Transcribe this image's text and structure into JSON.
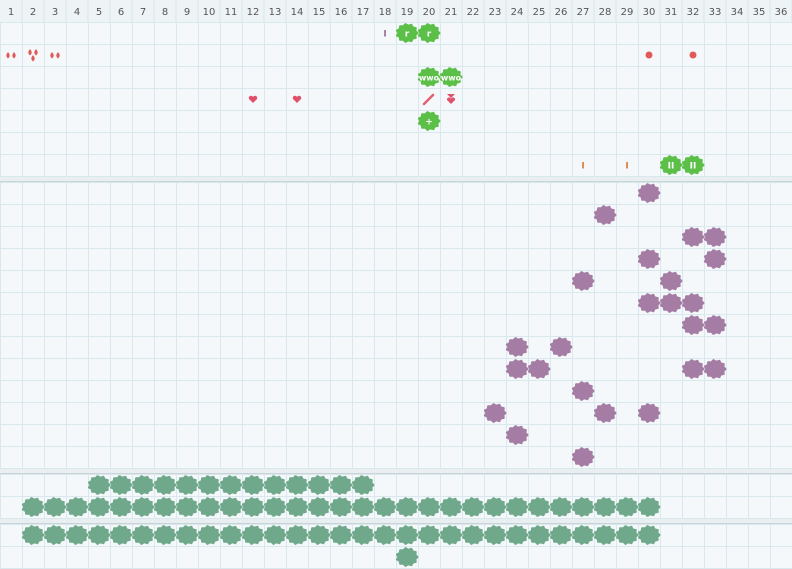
{
  "columns": [
    1,
    2,
    3,
    4,
    5,
    6,
    7,
    8,
    9,
    10,
    11,
    12,
    13,
    14,
    15,
    16,
    17,
    18,
    19,
    20,
    21,
    22,
    23,
    24,
    25,
    26,
    27,
    28,
    29,
    30,
    31,
    32,
    33,
    34,
    35,
    36
  ],
  "sections": [
    {
      "cells": [
        {
          "row": 1,
          "col": 18,
          "kind": "mark-purple",
          "label": "I"
        },
        {
          "row": 1,
          "col": 19,
          "kind": "green",
          "label": "r"
        },
        {
          "row": 1,
          "col": 20,
          "kind": "green",
          "label": "r"
        },
        {
          "row": 2,
          "col": 1,
          "kind": "drops"
        },
        {
          "row": 2,
          "col": 2,
          "kind": "drops3"
        },
        {
          "row": 2,
          "col": 3,
          "kind": "drops"
        },
        {
          "row": 2,
          "col": 30,
          "kind": "dot"
        },
        {
          "row": 2,
          "col": 32,
          "kind": "dot"
        },
        {
          "row": 3,
          "col": 20,
          "kind": "green",
          "label": "wwo"
        },
        {
          "row": 3,
          "col": 21,
          "kind": "green",
          "label": "wwo"
        },
        {
          "row": 4,
          "col": 12,
          "kind": "heart"
        },
        {
          "row": 4,
          "col": 14,
          "kind": "heart"
        },
        {
          "row": 4,
          "col": 20,
          "kind": "pencil"
        },
        {
          "row": 4,
          "col": 21,
          "kind": "ribbon"
        },
        {
          "row": 5,
          "col": 20,
          "kind": "green",
          "label": "+"
        },
        {
          "row": 7,
          "col": 27,
          "kind": "mark-orange",
          "label": "I"
        },
        {
          "row": 7,
          "col": 29,
          "kind": "mark-orange",
          "label": "I"
        },
        {
          "row": 7,
          "col": 31,
          "kind": "green",
          "label": "II"
        },
        {
          "row": 7,
          "col": 32,
          "kind": "green",
          "label": "II"
        }
      ]
    },
    {
      "cells": [
        {
          "row": 1,
          "col": 30,
          "kind": "purple"
        },
        {
          "row": 2,
          "col": 28,
          "kind": "purple"
        },
        {
          "row": 3,
          "col": 32,
          "kind": "purple"
        },
        {
          "row": 3,
          "col": 33,
          "kind": "purple"
        },
        {
          "row": 4,
          "col": 30,
          "kind": "purple"
        },
        {
          "row": 4,
          "col": 33,
          "kind": "purple"
        },
        {
          "row": 5,
          "col": 27,
          "kind": "purple"
        },
        {
          "row": 5,
          "col": 31,
          "kind": "purple"
        },
        {
          "row": 6,
          "col": 30,
          "kind": "purple"
        },
        {
          "row": 6,
          "col": 31,
          "kind": "purple"
        },
        {
          "row": 6,
          "col": 32,
          "kind": "purple"
        },
        {
          "row": 7,
          "col": 32,
          "kind": "purple"
        },
        {
          "row": 7,
          "col": 33,
          "kind": "purple"
        },
        {
          "row": 8,
          "col": 24,
          "kind": "purple"
        },
        {
          "row": 8,
          "col": 26,
          "kind": "purple"
        },
        {
          "row": 9,
          "col": 24,
          "kind": "purple"
        },
        {
          "row": 9,
          "col": 25,
          "kind": "purple"
        },
        {
          "row": 9,
          "col": 32,
          "kind": "purple"
        },
        {
          "row": 9,
          "col": 33,
          "kind": "purple"
        },
        {
          "row": 10,
          "col": 27,
          "kind": "purple"
        },
        {
          "row": 11,
          "col": 23,
          "kind": "purple"
        },
        {
          "row": 11,
          "col": 28,
          "kind": "purple"
        },
        {
          "row": 11,
          "col": 30,
          "kind": "purple"
        },
        {
          "row": 12,
          "col": 24,
          "kind": "purple"
        },
        {
          "row": 13,
          "col": 27,
          "kind": "purple"
        }
      ]
    },
    {
      "runs": [
        {
          "row": 1,
          "kind": "teal",
          "cols": [
            5,
            6,
            7,
            8,
            9,
            10,
            11,
            12,
            13,
            14,
            15,
            16,
            17
          ]
        },
        {
          "row": 2,
          "kind": "teal",
          "cols": [
            2,
            3,
            4,
            5,
            6,
            7,
            8,
            9,
            10,
            11,
            12,
            13,
            14,
            15,
            16,
            17,
            18,
            19,
            20,
            21,
            22,
            23,
            24,
            25,
            26,
            27,
            28,
            29,
            30
          ]
        }
      ]
    },
    {
      "runs": [
        {
          "row": 1,
          "kind": "teal",
          "cols": [
            2,
            3,
            4,
            5,
            6,
            7,
            8,
            9,
            10,
            11,
            12,
            13,
            14,
            15,
            16,
            17,
            18,
            19,
            20,
            21,
            22,
            23,
            24,
            25,
            26,
            27,
            28,
            29,
            30
          ]
        },
        {
          "row": 2,
          "kind": "teal",
          "cols": [
            19
          ]
        }
      ]
    }
  ]
}
